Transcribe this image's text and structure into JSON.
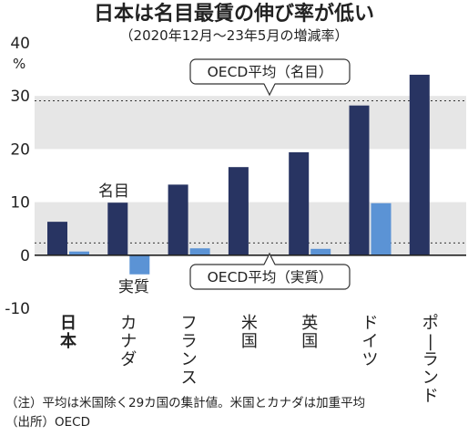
{
  "chart_data": {
    "type": "bar",
    "title": "日本は名目最賃の伸び率が低い",
    "subtitle": "（2020年12月～23年5月の増減率）",
    "y_unit": "%",
    "ylim": [
      -10,
      40
    ],
    "yticks": [
      40,
      30,
      20,
      10,
      0,
      -10
    ],
    "grid": "alternating bands",
    "categories": [
      "日本",
      "カナダ",
      "フランス",
      "米国",
      "英国",
      "ドイツ",
      "ポーランド"
    ],
    "series": [
      {
        "name": "名目",
        "color": "#283462",
        "values": [
          6.3,
          9.9,
          13.3,
          16.6,
          19.4,
          28.2,
          34.0
        ]
      },
      {
        "name": "実質",
        "color": "#5b93d5",
        "values": [
          0.7,
          -3.6,
          1.3,
          null,
          1.2,
          9.8,
          null
        ]
      }
    ],
    "reference_lines": [
      {
        "label": "OECD平均（名目）",
        "value": 29.1
      },
      {
        "label": "OECD平均（実質）",
        "value": 2.3
      }
    ],
    "notes": [
      "（注）平均は米国除く29カ国の集計値。米国とカナダは加重平均",
      "（出所）OECD"
    ]
  }
}
